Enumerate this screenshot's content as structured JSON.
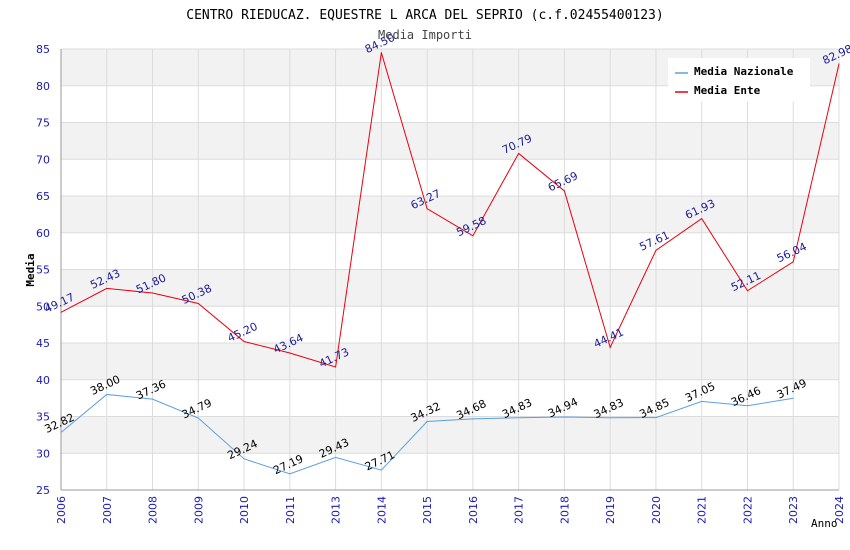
{
  "chart_data": {
    "type": "line",
    "title": "CENTRO RIEDUCAZ. EQUESTRE L ARCA DEL SEPRIO (c.f.02455400123)",
    "subtitle": "Media Importi",
    "xlabel": "Anno",
    "ylabel": "Media",
    "ylim": [
      25,
      85
    ],
    "yticks": [
      25,
      30,
      35,
      40,
      45,
      50,
      55,
      60,
      65,
      70,
      75,
      80,
      85
    ],
    "x": [
      "2006",
      "2007",
      "2008",
      "2009",
      "2010",
      "2011",
      "2013",
      "2014",
      "2015",
      "2016",
      "2017",
      "2018",
      "2019",
      "2020",
      "2021",
      "2022",
      "2023",
      "2024"
    ],
    "legend_position": "top-right",
    "series": [
      {
        "name": "Media Nazionale",
        "color": "#5aa0e0",
        "label_color": "#000000",
        "values": [
          32.82,
          38.0,
          37.36,
          34.79,
          29.24,
          27.19,
          29.43,
          27.71,
          34.32,
          34.68,
          34.83,
          34.94,
          34.83,
          34.85,
          37.05,
          36.46,
          37.49,
          null
        ],
        "labels": [
          "32.82",
          "38.00",
          "37.36",
          "34.79",
          "29.24",
          "27.19",
          "29.43",
          "27.71",
          "34.32",
          "34.68",
          "34.83",
          "34.94",
          "34.83",
          "34.85",
          "37.05",
          "36.46",
          "37.49",
          null
        ]
      },
      {
        "name": "Media Ente",
        "color": "#e8000f",
        "label_color": "#1a1a9c",
        "values": [
          49.17,
          52.43,
          51.8,
          50.38,
          45.2,
          43.64,
          41.73,
          84.5,
          63.27,
          59.58,
          70.79,
          65.69,
          44.41,
          57.61,
          61.93,
          52.11,
          56.04,
          82.98
        ],
        "labels": [
          "49.17",
          "52.43",
          "51.80",
          "50.38",
          "45.20",
          "43.64",
          "41.73",
          "84.50",
          "63.27",
          "59.58",
          "70.79",
          "65.69",
          "44.41",
          "57.61",
          "61.93",
          "52.11",
          "56.04",
          "82.98"
        ]
      }
    ],
    "colors": {
      "band": "#f2f2f2",
      "grid": "#dcdcdc",
      "axis": "#999999",
      "tick_text": "#1a1ab4",
      "title_text": "#000000"
    }
  }
}
